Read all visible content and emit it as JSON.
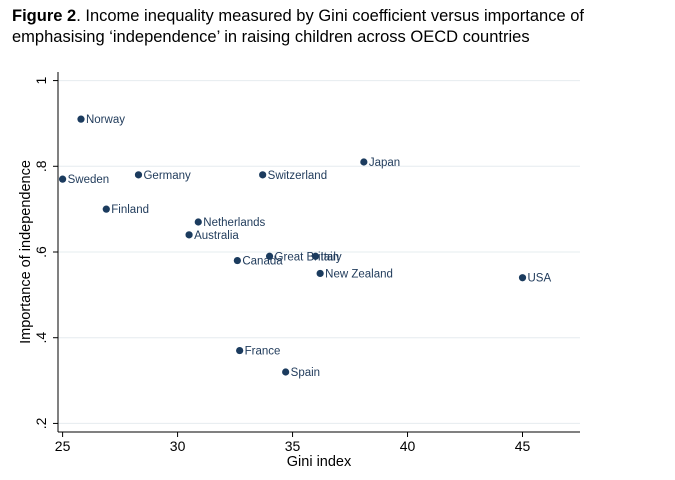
{
  "figure": {
    "label": "Figure 2",
    "caption": ". Income inequality measured by Gini coefficient versus importance of emphasising ‘independence’ in raising children across OECD countries"
  },
  "colors": {
    "point": "#1b3b5e",
    "grid": "#e6ecef",
    "axis": "#000000",
    "label": "#1f3a5a"
  },
  "chart_data": {
    "type": "scatter",
    "title": "",
    "xlabel": "Gini index",
    "ylabel": "Importance of independence",
    "xlim": [
      24.8,
      47.5
    ],
    "ylim": [
      0.18,
      1.02
    ],
    "xticks": [
      25,
      30,
      35,
      40,
      45
    ],
    "xtick_labels": [
      "25",
      "30",
      "35",
      "40",
      "45"
    ],
    "yticks": [
      0.2,
      0.4,
      0.6,
      0.8,
      1.0
    ],
    "ytick_labels": [
      ".2",
      ".4",
      ".6",
      ".8",
      "1"
    ],
    "grid": "horizontal",
    "points": [
      {
        "label": "Norway",
        "x": 25.8,
        "y": 0.91
      },
      {
        "label": "Japan",
        "x": 38.1,
        "y": 0.81
      },
      {
        "label": "Sweden",
        "x": 25.0,
        "y": 0.77
      },
      {
        "label": "Germany",
        "x": 28.3,
        "y": 0.78
      },
      {
        "label": "Switzerland",
        "x": 33.7,
        "y": 0.78
      },
      {
        "label": "Finland",
        "x": 26.9,
        "y": 0.7
      },
      {
        "label": "Netherlands",
        "x": 30.9,
        "y": 0.67
      },
      {
        "label": "Australia",
        "x": 30.5,
        "y": 0.64
      },
      {
        "label": "Great Britain",
        "x": 34.0,
        "y": 0.59
      },
      {
        "label": "Italy",
        "x": 36.0,
        "y": 0.59
      },
      {
        "label": "Canada",
        "x": 32.6,
        "y": 0.58
      },
      {
        "label": "New Zealand",
        "x": 36.2,
        "y": 0.55
      },
      {
        "label": "USA",
        "x": 45.0,
        "y": 0.54
      },
      {
        "label": "France",
        "x": 32.7,
        "y": 0.37
      },
      {
        "label": "Spain",
        "x": 34.7,
        "y": 0.32
      }
    ]
  }
}
